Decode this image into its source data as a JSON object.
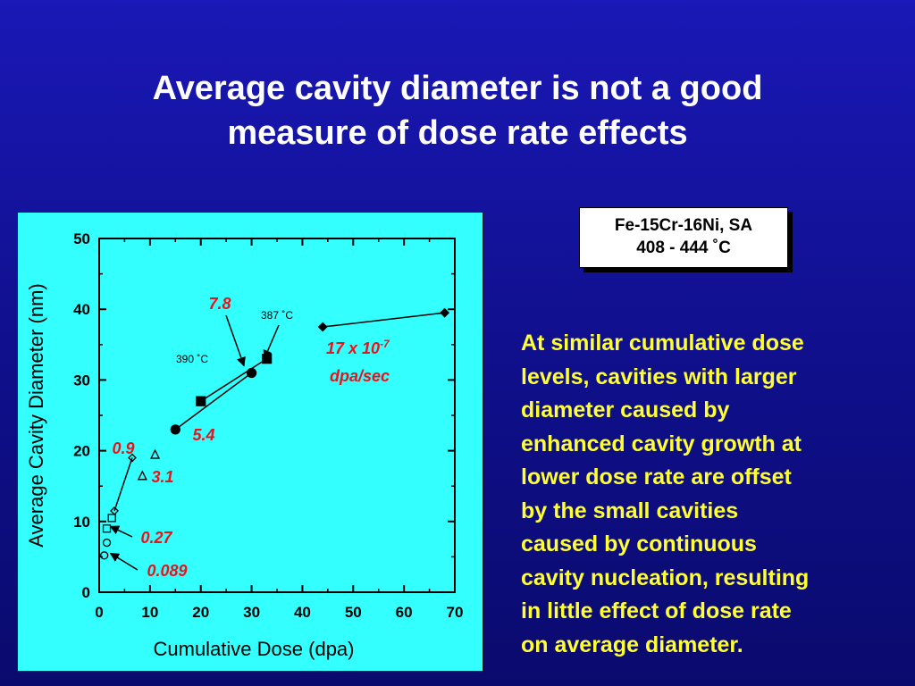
{
  "slide": {
    "title_lines": [
      "Average cavity diameter is not a good",
      "measure of dose rate effects"
    ],
    "material_label": [
      "Fe-15Cr-16Ni, SA",
      "408 - 444 ˚C"
    ],
    "body_lines": [
      "At similar cumulative dose",
      "levels, cavities with larger",
      "diameter caused by",
      "enhanced cavity growth at",
      "lower dose rate are offset",
      "by the small cavities",
      "caused by continuous",
      "cavity nucleation, resulting",
      "in little effect of dose rate",
      "on average diameter."
    ],
    "colors": {
      "background": "#1414a8",
      "title": "#ffffff",
      "body_text": "#ffff33",
      "chart_bg": "#33ffff",
      "annotation": "#e8141c"
    }
  },
  "chart_data": {
    "type": "scatter",
    "xlabel": "Cumulative Dose (dpa)",
    "ylabel": "Average Cavity Diameter (nm)",
    "xlim": [
      0,
      70
    ],
    "ylim": [
      0,
      50
    ],
    "xticks": [
      0,
      10,
      20,
      30,
      40,
      50,
      60,
      70
    ],
    "yticks": [
      0,
      10,
      20,
      30,
      40,
      50
    ],
    "series": [
      {
        "marker": "circle-open",
        "connected": false,
        "points": [
          [
            1,
            5.2
          ],
          [
            1.5,
            7
          ]
        ]
      },
      {
        "marker": "square-open",
        "connected": false,
        "points": [
          [
            1.5,
            9
          ],
          [
            2.5,
            10.5
          ]
        ]
      },
      {
        "marker": "diamond-open",
        "connected": true,
        "points": [
          [
            3,
            11.5
          ],
          [
            6.5,
            19
          ]
        ]
      },
      {
        "marker": "triangle-open",
        "connected": false,
        "points": [
          [
            8.5,
            16.5
          ],
          [
            11,
            19.5
          ]
        ]
      },
      {
        "marker": "circle-filled",
        "connected": true,
        "points": [
          [
            15,
            23
          ],
          [
            30,
            31
          ]
        ]
      },
      {
        "marker": "square-filled",
        "connected": true,
        "points": [
          [
            20,
            27
          ],
          [
            33,
            33
          ]
        ]
      },
      {
        "marker": "diamond-filled",
        "connected": true,
        "points": [
          [
            44,
            37.5
          ],
          [
            68,
            39.5
          ]
        ]
      }
    ],
    "annotations": [
      {
        "text": "7.8",
        "color": "red",
        "arrow_to": [
          28.5,
          31.5
        ]
      },
      {
        "text": "387 ˚C",
        "color": "black",
        "arrow_to": [
          32.5,
          33
        ]
      },
      {
        "text": "390 ˚C",
        "color": "black"
      },
      {
        "text_main": "17 x 10",
        "text_sup": "-7",
        "text_line2": "dpa/sec",
        "color": "red"
      },
      {
        "text": "5.4",
        "color": "red"
      },
      {
        "text": "0.9",
        "color": "red"
      },
      {
        "text": "3.1",
        "color": "red"
      },
      {
        "text": "0.27",
        "color": "red",
        "arrow_to": [
          1.5,
          9.3
        ]
      },
      {
        "text": "0.089",
        "color": "red",
        "arrow_to": [
          1.5,
          5.5
        ]
      }
    ]
  }
}
